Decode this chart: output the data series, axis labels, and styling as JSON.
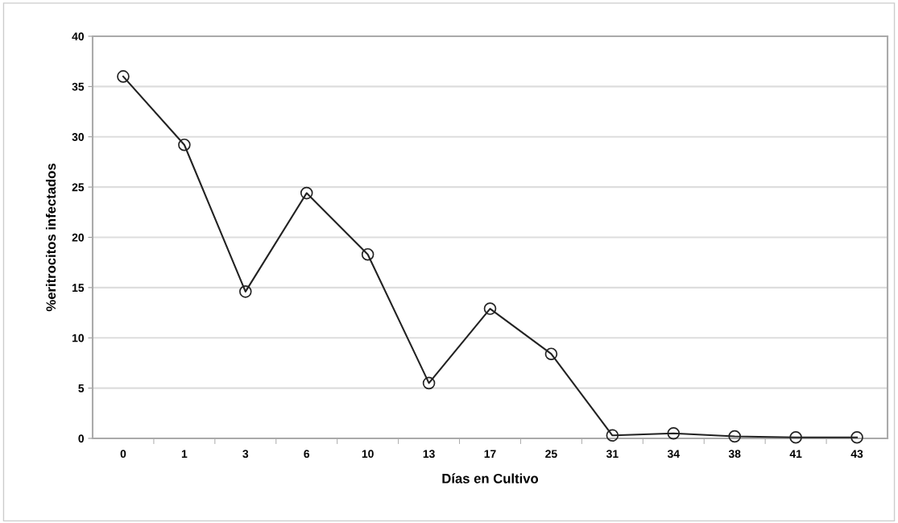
{
  "chart_data": {
    "type": "line",
    "xlabel": "Días en Cultivo",
    "ylabel": "%eritrocitos infectados",
    "categories": [
      "0",
      "1",
      "3",
      "6",
      "10",
      "13",
      "17",
      "25",
      "31",
      "34",
      "38",
      "41",
      "43"
    ],
    "series": [
      {
        "color": "#222222",
        "values": [
          36,
          29.2,
          14.6,
          24.4,
          18.3,
          5.5,
          12.9,
          8.4,
          0.3,
          0.5,
          0.2,
          0.1,
          0.1
        ]
      }
    ],
    "ylim": [
      0,
      40
    ],
    "yticks": [
      0,
      5,
      10,
      15,
      20,
      25,
      30,
      35,
      40
    ],
    "grid": "y",
    "marker": "circle",
    "line_style": "solid"
  }
}
